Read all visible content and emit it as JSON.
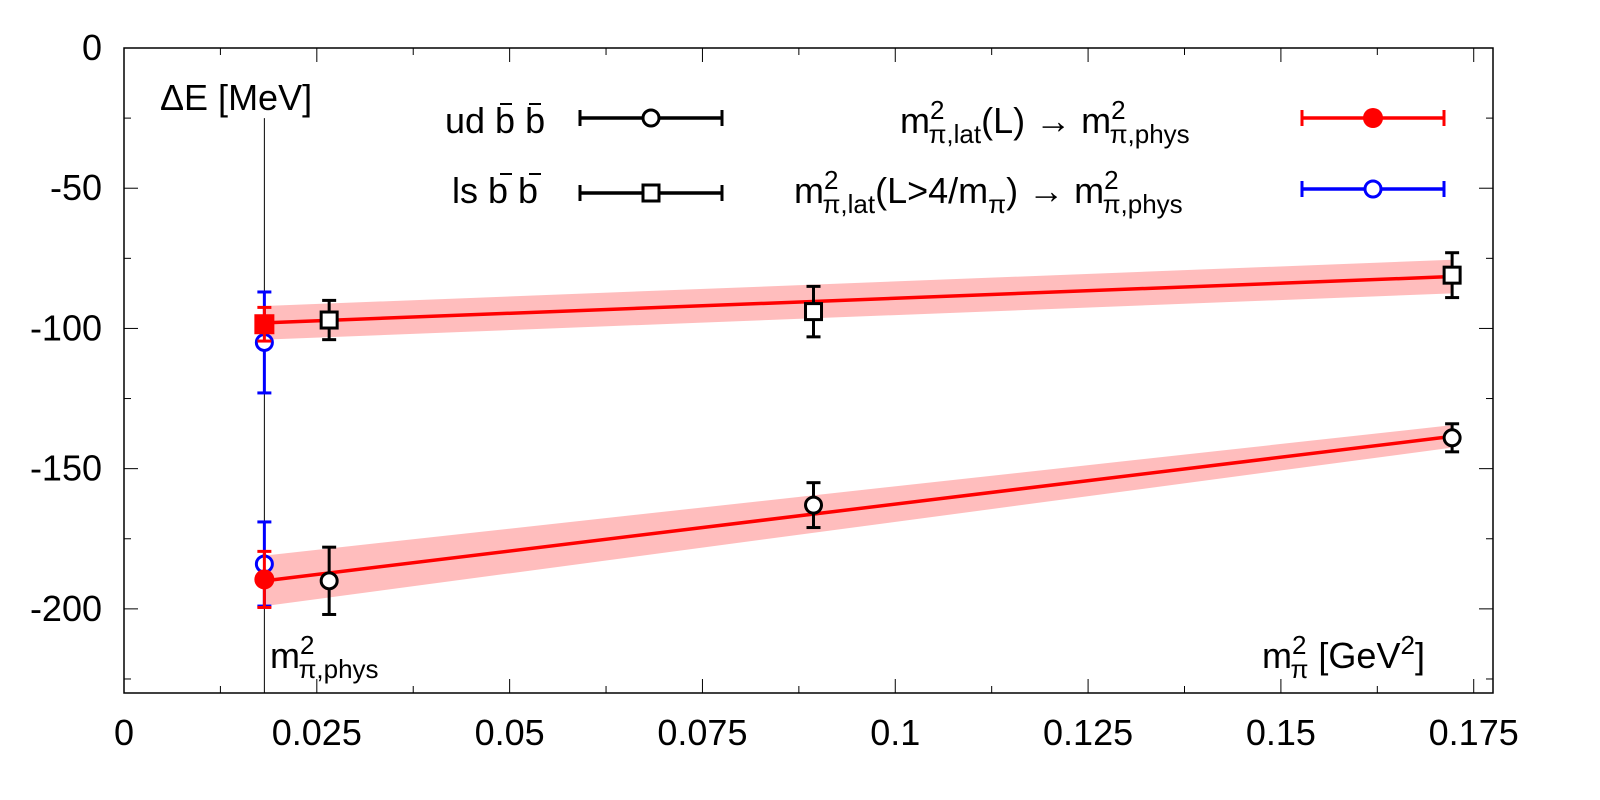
{
  "chart_data": {
    "type": "scatter",
    "x_axis": {
      "range": [
        0,
        0.1775
      ],
      "ticks": [
        {
          "value": 0,
          "label": "0"
        },
        {
          "value": 0.025,
          "label": "0.025"
        },
        {
          "value": 0.05,
          "label": "0.05"
        },
        {
          "value": 0.075,
          "label": "0.075"
        },
        {
          "value": 0.1,
          "label": "0.1"
        },
        {
          "value": 0.125,
          "label": "0.125"
        },
        {
          "value": 0.15,
          "label": "0.15"
        },
        {
          "value": 0.175,
          "label": "0.175"
        }
      ],
      "minor_ticks": [
        0.0125,
        0.0375,
        0.0625,
        0.0875,
        0.1125,
        0.1375,
        0.1625
      ]
    },
    "y_axis": {
      "range": [
        -230,
        0
      ],
      "ticks": [
        {
          "value": 0,
          "label": "0"
        },
        {
          "value": -50,
          "label": "-50"
        },
        {
          "value": -100,
          "label": "-100"
        },
        {
          "value": -150,
          "label": "-150"
        },
        {
          "value": -200,
          "label": "-200"
        }
      ],
      "minor_ticks": [
        -25,
        -75,
        -125,
        -175,
        -225
      ]
    },
    "labels": {
      "ylabel": "ΔE [MeV]",
      "xlabel_base": "m",
      "xlabel_sup": "2",
      "xlabel_sub": "π",
      "xlabel_unit": " [GeV",
      "xlabel_unit_sup": "2",
      "xlabel_end": "]",
      "phys_marker_base": "m",
      "phys_marker_sup": "2",
      "phys_marker_sub": "π,phys"
    },
    "physical_point": 0.0182,
    "series": [
      {
        "name": "ud b̄ b̄",
        "marker": "circle-open",
        "color": "#000000",
        "x": [
          0.0266,
          0.0894,
          0.1722
        ],
        "y": [
          -190,
          -163,
          -139
        ],
        "yerr": [
          12,
          8,
          5
        ]
      },
      {
        "name": "ls b̄ b̄",
        "marker": "square-open",
        "color": "#000000",
        "x": [
          0.0266,
          0.0894,
          0.1722
        ],
        "y": [
          -97,
          -94,
          -81
        ],
        "yerr": [
          7,
          9,
          8
        ]
      },
      {
        "name": "m²π,lat(L) → m²π,phys",
        "marker": "filled",
        "color": "#ff0000",
        "points": [
          {
            "x": 0.0182,
            "y": -189.5,
            "yerr": 10,
            "shape": "circle"
          },
          {
            "x": 0.0182,
            "y": -98.5,
            "yerr": 6,
            "shape": "square"
          }
        ]
      },
      {
        "name": "m²π,lat(L>4/mπ) → m²π,phys",
        "marker": "circle-open",
        "color": "#0000ff",
        "points": [
          {
            "x": 0.0182,
            "y": -184,
            "yerr": 15
          },
          {
            "x": 0.0182,
            "y": -105,
            "yerr": 18
          }
        ]
      }
    ],
    "fits": [
      {
        "color": "#ff0000",
        "band_color": "#ff9999",
        "x": [
          0.0182,
          0.1722
        ],
        "y": [
          -190,
          -138.5
        ],
        "band_halfwidth": [
          9,
          4
        ]
      },
      {
        "color": "#ff0000",
        "band_color": "#ff9999",
        "x": [
          0.0182,
          0.1722
        ],
        "y": [
          -98,
          -81.5
        ],
        "band_halfwidth": [
          6,
          6
        ]
      }
    ],
    "legend": {
      "placement": "top",
      "entries": [
        {
          "base": "ud ",
          "bar": "b b",
          "marker": "circle-open",
          "color": "#000000"
        },
        {
          "base": "ls ",
          "bar": "b b",
          "marker": "square-open",
          "color": "#000000"
        },
        {
          "m": "m",
          "sup": "2",
          "sub": "π,lat",
          "rest": "(L)",
          "arrow": " → ",
          "m2": "m",
          "sup2": "2",
          "sub2": "π,phys",
          "marker": "circle-filled",
          "color": "#ff0000"
        },
        {
          "m": "m",
          "sup": "2",
          "sub": "π,lat",
          "rest": "(L>4/m",
          "rest_sub": "π",
          "rest_end": ")",
          "arrow": " → ",
          "m2": "m",
          "sup2": "2",
          "sub2": "π,phys",
          "marker": "circle-open",
          "color": "#0000ff"
        }
      ]
    }
  }
}
